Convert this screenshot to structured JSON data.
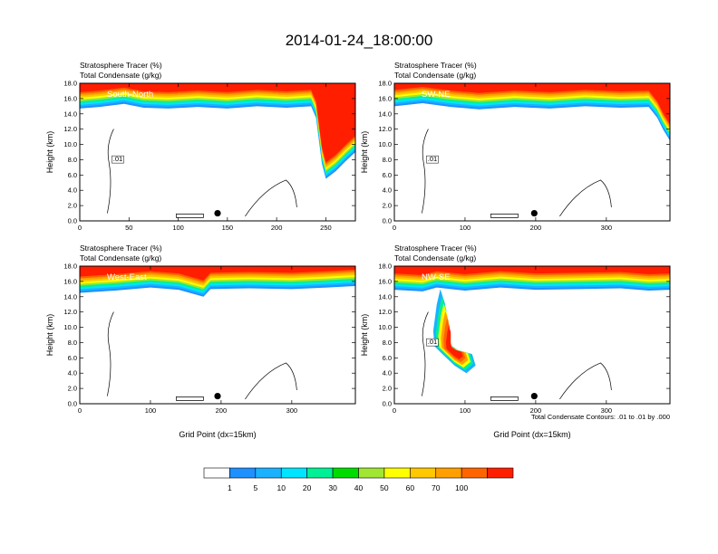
{
  "figure": {
    "title": "2014-01-24_18:00:00",
    "contour_note": "Total Condensate Contours: .01 to .01 by .000",
    "xlabel": "Grid Point (dx=15km)",
    "ylabel": "Height (km)",
    "left_label_1": "Stratosphere Tracer   (%)",
    "left_label_2": "Total Condensate   (g/kg)"
  },
  "colorbar": {
    "levels": [
      "1",
      "5",
      "10",
      "20",
      "30",
      "40",
      "50",
      "60",
      "70",
      "100"
    ],
    "colors": [
      "#ffffff",
      "#1e90ff",
      "#1ab2ff",
      "#00e5ff",
      "#00f096",
      "#00dc00",
      "#a0e632",
      "#ffff00",
      "#ffc800",
      "#ffa000",
      "#ff6400",
      "#ff1e00"
    ]
  },
  "chart_data": [
    {
      "type": "heatmap",
      "title": "South-North",
      "xlabel": "",
      "ylabel": "Height (km)",
      "xlim": [
        0,
        280
      ],
      "ylim": [
        0,
        18
      ],
      "x_ticks": [
        "0",
        "50",
        "100",
        "150",
        "200",
        "250"
      ],
      "y_ticks": [
        "0.0",
        "2.0",
        "4.0",
        "6.0",
        "8.0",
        "10.0",
        "12.0",
        "14.0",
        "16.0",
        "18.0"
      ],
      "contour_label": ".01",
      "tropopause_km": [
        [
          0,
          14.7
        ],
        [
          20,
          14.9
        ],
        [
          45,
          15.3
        ],
        [
          65,
          14.8
        ],
        [
          90,
          14.7
        ],
        [
          120,
          14.9
        ],
        [
          150,
          14.7
        ],
        [
          180,
          15.0
        ],
        [
          210,
          14.8
        ],
        [
          235,
          15.0
        ],
        [
          240,
          13.5
        ],
        [
          243,
          10.5
        ],
        [
          246,
          7.5
        ],
        [
          250,
          5.5
        ],
        [
          260,
          6.5
        ],
        [
          270,
          7.8
        ],
        [
          280,
          9.0
        ]
      ],
      "marker": {
        "x": 140,
        "y": 1.0
      }
    },
    {
      "type": "heatmap",
      "title": "SW-NE",
      "xlabel": "",
      "ylabel": "Height (km)",
      "xlim": [
        0,
        390
      ],
      "ylim": [
        0,
        18
      ],
      "x_ticks": [
        "0",
        "100",
        "200",
        "300"
      ],
      "y_ticks": [
        "0.0",
        "2.0",
        "4.0",
        "6.0",
        "8.0",
        "10.0",
        "12.0",
        "14.0",
        "16.0",
        "18.0"
      ],
      "contour_label": ".01",
      "tropopause_km": [
        [
          0,
          15.0
        ],
        [
          40,
          15.4
        ],
        [
          80,
          14.9
        ],
        [
          120,
          14.6
        ],
        [
          170,
          14.9
        ],
        [
          220,
          14.7
        ],
        [
          270,
          15.0
        ],
        [
          320,
          14.8
        ],
        [
          360,
          14.9
        ],
        [
          372,
          13.5
        ],
        [
          380,
          12.0
        ],
        [
          390,
          10.5
        ]
      ],
      "marker": {
        "x": 198,
        "y": 1.0
      }
    },
    {
      "type": "heatmap",
      "title": "West-East",
      "xlabel": "Grid Point (dx=15km)",
      "ylabel": "Height (km)",
      "xlim": [
        0,
        390
      ],
      "ylim": [
        0,
        18
      ],
      "x_ticks": [
        "0",
        "100",
        "200",
        "300"
      ],
      "y_ticks": [
        "0.0",
        "2.0",
        "4.0",
        "6.0",
        "8.0",
        "10.0",
        "12.0",
        "14.0",
        "16.0",
        "18.0"
      ],
      "tropopause_km": [
        [
          0,
          14.5
        ],
        [
          50,
          14.8
        ],
        [
          100,
          15.2
        ],
        [
          140,
          14.9
        ],
        [
          175,
          14.0
        ],
        [
          185,
          15.0
        ],
        [
          240,
          15.1
        ],
        [
          300,
          15.0
        ],
        [
          350,
          15.2
        ],
        [
          390,
          15.4
        ]
      ],
      "marker": {
        "x": 195,
        "y": 1.0
      }
    },
    {
      "type": "heatmap",
      "title": "NW-SE",
      "xlabel": "Grid Point (dx=15km)",
      "ylabel": "Height (km)",
      "xlim": [
        0,
        390
      ],
      "ylim": [
        0,
        18
      ],
      "x_ticks": [
        "0",
        "100",
        "200",
        "300"
      ],
      "y_ticks": [
        "0.0",
        "2.0",
        "4.0",
        "6.0",
        "8.0",
        "10.0",
        "12.0",
        "14.0",
        "16.0",
        "18.0"
      ],
      "contour_label": ".01",
      "tropopause_km": [
        [
          0,
          14.9
        ],
        [
          40,
          14.7
        ],
        [
          60,
          15.2
        ],
        [
          100,
          14.8
        ],
        [
          150,
          15.2
        ],
        [
          200,
          14.9
        ],
        [
          260,
          15.0
        ],
        [
          320,
          15.1
        ],
        [
          360,
          14.8
        ],
        [
          390,
          14.9
        ]
      ],
      "intrusion": [
        [
          65,
          15.0
        ],
        [
          72,
          13.0
        ],
        [
          72,
          9.5
        ],
        [
          75,
          8.0
        ],
        [
          90,
          7.0
        ],
        [
          110,
          6.5
        ],
        [
          115,
          5.0
        ],
        [
          102,
          4.0
        ],
        [
          85,
          5.0
        ],
        [
          68,
          6.5
        ],
        [
          57,
          7.5
        ],
        [
          55,
          9.5
        ],
        [
          60,
          13.0
        ]
      ],
      "marker": {
        "x": 198,
        "y": 1.0
      }
    }
  ]
}
